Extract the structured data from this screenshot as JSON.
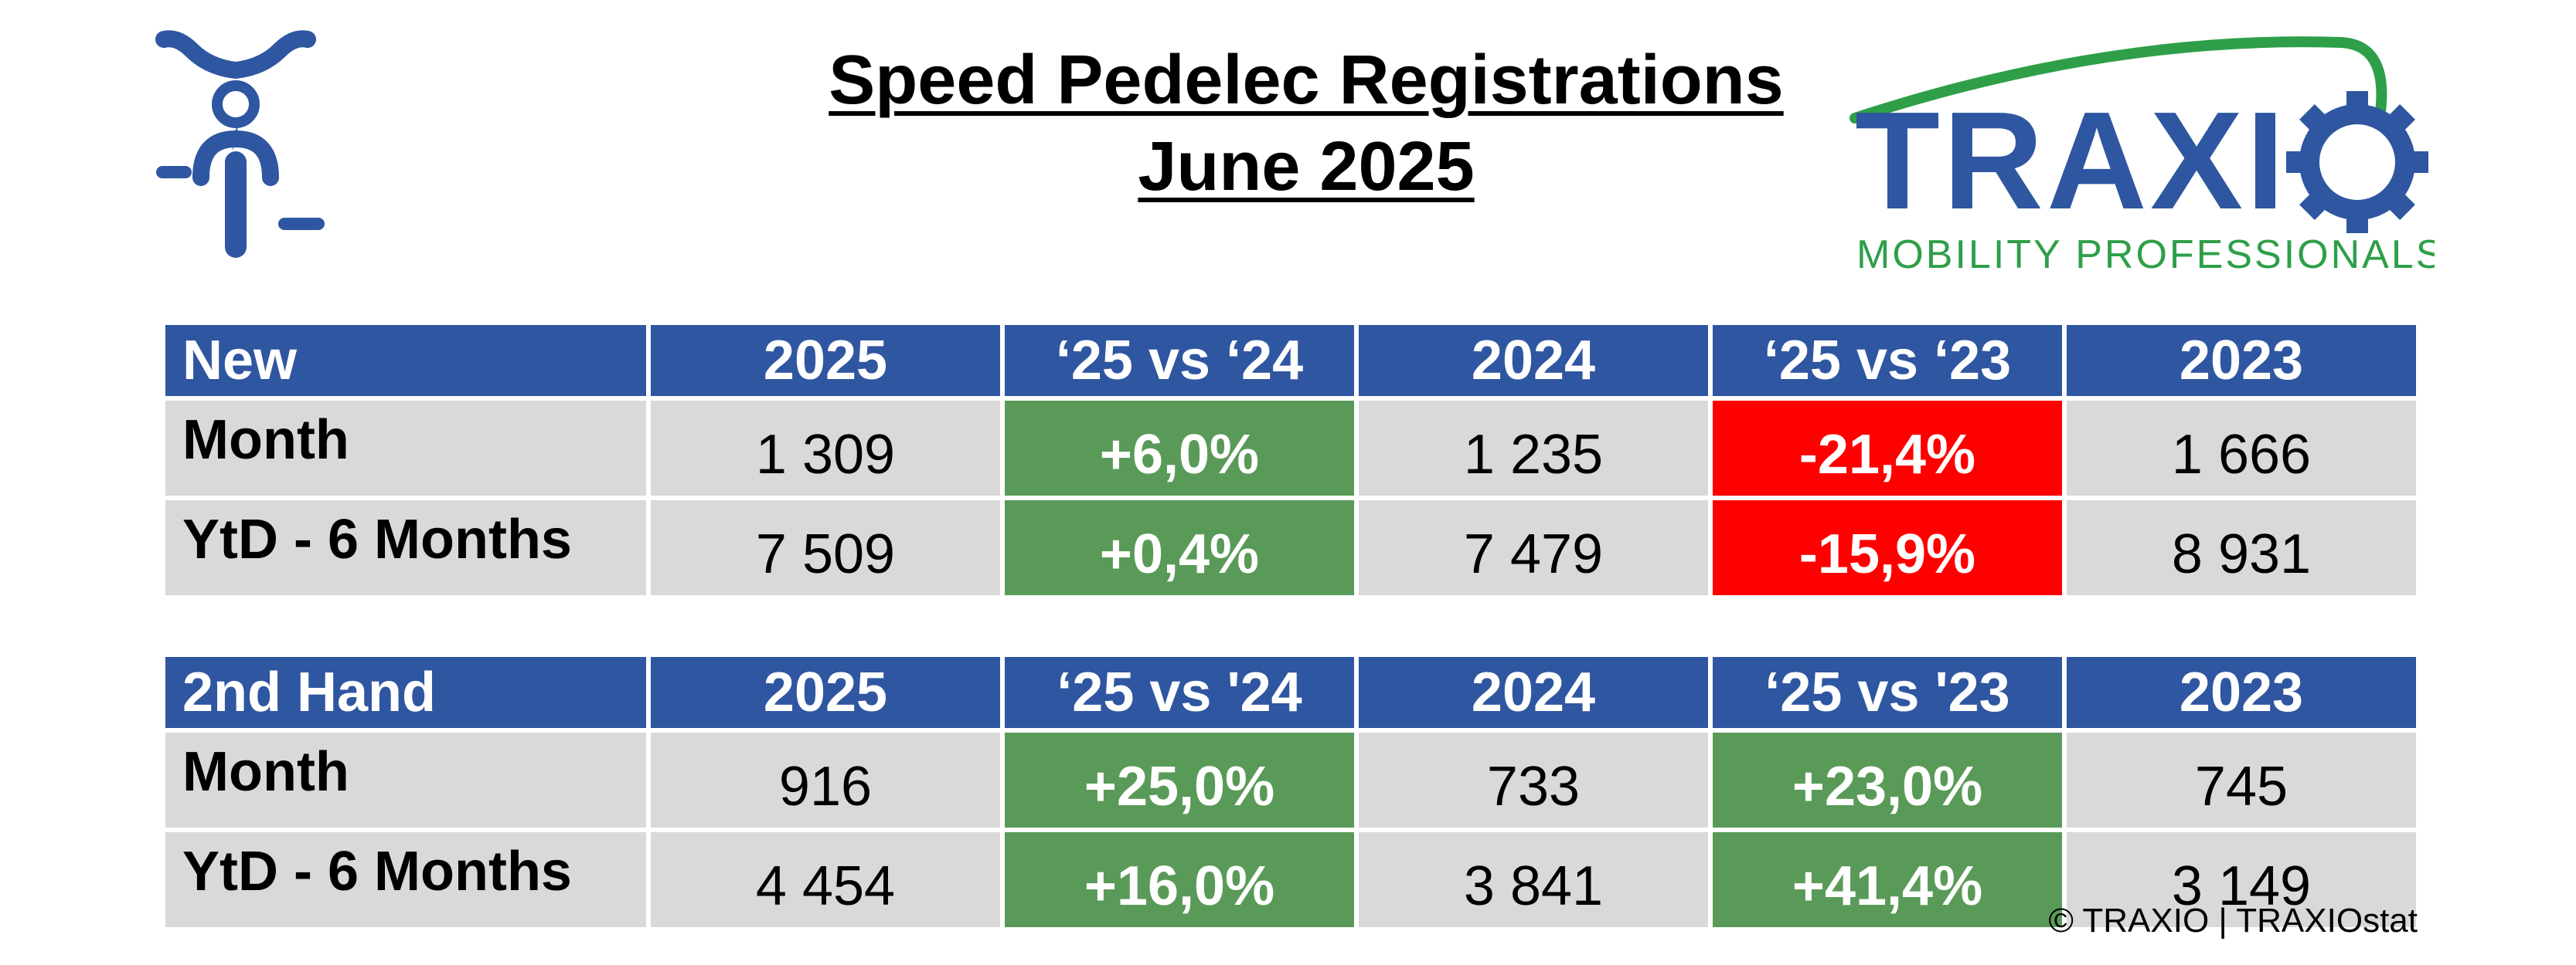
{
  "title": {
    "line1": "Speed Pedelec Registrations",
    "line2": "June 2025"
  },
  "logo": {
    "brand": "TRAXIO",
    "tagline": "MOBILITY PROFESSIONALS",
    "colors": {
      "blue": "#2f56a0",
      "green": "#2e9f48"
    }
  },
  "icon": {
    "name": "speed-pedelec-rider-icon",
    "color": "#2f56a0"
  },
  "tables": {
    "new": {
      "headers": [
        "New",
        "2025",
        "‘25 vs ‘24",
        "2024",
        "‘25 vs ‘23",
        "2023"
      ],
      "rows": [
        {
          "label": "Month",
          "v2025": "1 309",
          "vs24": "+6,0%",
          "v2024": "1 235",
          "vs23": "-21,4%",
          "v2023": "1 666"
        },
        {
          "label": "YtD - 6 Months",
          "v2025": "7 509",
          "vs24": "+0,4%",
          "v2024": "7 479",
          "vs23": "-15,9%",
          "v2023": "8 931"
        }
      ]
    },
    "used": {
      "headers": [
        "2nd Hand",
        "2025",
        "‘25 vs '24",
        "2024",
        "‘25 vs '23",
        "2023"
      ],
      "rows": [
        {
          "label": "Month",
          "v2025": "916",
          "vs24": "+25,0%",
          "v2024": "733",
          "vs23": "+23,0%",
          "v2023": "745"
        },
        {
          "label": "YtD - 6 Months",
          "v2025": "4 454",
          "vs24": "+16,0%",
          "v2024": "3 841",
          "vs23": "+41,4%",
          "v2023": "3 149"
        }
      ]
    }
  },
  "colors": {
    "header_bg": "#2f56a0",
    "cell_bg": "#d9d9d9",
    "positive": "#5a9a58",
    "negative": "#ff0000"
  },
  "copyright": "© TRAXIO | TRAXIOstat"
}
